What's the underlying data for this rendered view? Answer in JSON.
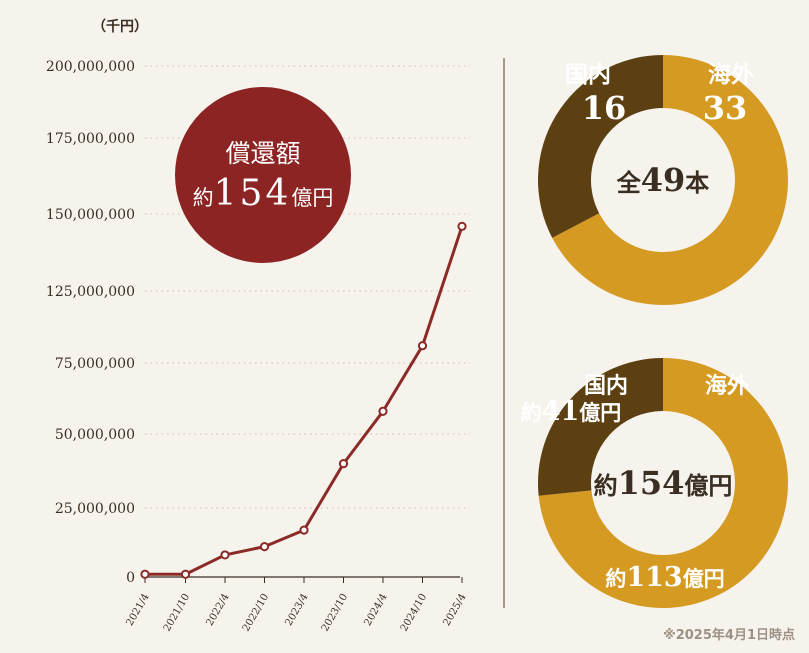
{
  "unit_label": "（千円）",
  "as_of_note": "※2025年4月1日時点",
  "colors": {
    "background": "#f6f3ec",
    "line": "#8b2a27",
    "badge": "#8b2422",
    "domestic": "#5d4011",
    "overseas": "#d59a22",
    "grid": "#d9d2c4",
    "divider": "#7a6a55"
  },
  "badge": {
    "title": "償還額",
    "prefix": "約",
    "value": "154",
    "suffix": "億円"
  },
  "chart_data": [
    {
      "type": "line",
      "y_tick_labels": [
        "200,000,000",
        "175,000,000",
        "150,000,000",
        "125,000,000",
        "75,000,000",
        "50,000,000",
        "25,000,000",
        "0"
      ],
      "categories": [
        "2021/4",
        "2021/10",
        "2022/4",
        "2022/10",
        "2023/4",
        "2023/10",
        "2024/4",
        "2024/10",
        "2025/4"
      ],
      "series": [
        {
          "values": [
            1000000,
            1000000,
            8000000,
            11000000,
            17000000,
            40000000,
            58000000,
            87000000,
            146000000
          ]
        }
      ],
      "grid": true
    },
    {
      "type": "pie",
      "center_text": {
        "prefix": "全",
        "value": "49",
        "suffix": "本"
      },
      "slices": [
        {
          "label": "国内",
          "value": 16,
          "display": "16"
        },
        {
          "label": "海外",
          "value": 33,
          "display": "33"
        }
      ]
    },
    {
      "type": "pie",
      "center_text": {
        "prefix": "約",
        "value": "154",
        "suffix": "億円"
      },
      "slices": [
        {
          "label": "国内",
          "value": 41,
          "display": "約41億円"
        },
        {
          "label": "海外",
          "value": 113,
          "display": "約113億円"
        }
      ]
    }
  ]
}
